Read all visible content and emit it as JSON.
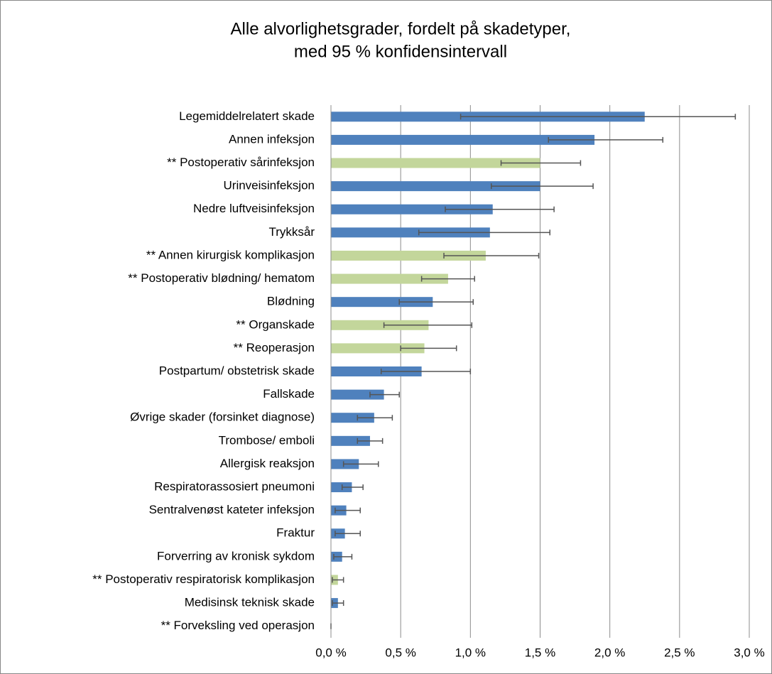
{
  "chart_data": {
    "type": "bar",
    "orientation": "horizontal",
    "title": [
      "Alle alvorlighetsgrader, fordelt på skadetyper,",
      "med 95 % konfidensintervall"
    ],
    "categories": [
      "Legemiddelrelatert skade",
      "Annen infeksjon",
      "** Postoperativ sårinfeksjon",
      "Urinveisinfeksjon",
      "Nedre luftveisinfeksjon",
      "Trykksår",
      "** Annen kirurgisk komplikasjon",
      "** Postoperativ blødning/ hematom",
      "Blødning",
      "** Organskade",
      "** Reoperasjon",
      "Postpartum/ obstetrisk skade",
      "Fallskade",
      "Øvrige skader (forsinket diagnose)",
      "Trombose/ emboli",
      "Allergisk reaksjon",
      "Respiratorassosiert pneumoni",
      "Sentralvenøst kateter infeksjon",
      "Fraktur",
      "Forverring av kronisk sykdom",
      "** Postoperativ respiratorisk komplikasjon",
      "Medisinsk teknisk skade",
      "** Forveksling ved operasjon"
    ],
    "values": [
      2.25,
      1.89,
      1.5,
      1.5,
      1.16,
      1.14,
      1.11,
      0.84,
      0.73,
      0.7,
      0.67,
      0.65,
      0.38,
      0.31,
      0.28,
      0.2,
      0.15,
      0.11,
      0.1,
      0.08,
      0.05,
      0.05,
      0
    ],
    "ci_low": [
      0.93,
      1.56,
      1.22,
      1.15,
      0.82,
      0.63,
      0.81,
      0.65,
      0.49,
      0.38,
      0.5,
      0.36,
      0.28,
      0.19,
      0.19,
      0.09,
      0.08,
      0.03,
      0.03,
      0.02,
      0.01,
      0.01,
      0
    ],
    "ci_high": [
      2.9,
      2.38,
      1.79,
      1.88,
      1.6,
      1.57,
      1.49,
      1.03,
      1.02,
      1.01,
      0.9,
      1.0,
      0.49,
      0.44,
      0.37,
      0.34,
      0.23,
      0.21,
      0.21,
      0.15,
      0.09,
      0.09,
      0
    ],
    "colors": [
      "#4f81bd",
      "#4f81bd",
      "#c3d69b",
      "#4f81bd",
      "#4f81bd",
      "#4f81bd",
      "#c3d69b",
      "#c3d69b",
      "#4f81bd",
      "#c3d69b",
      "#c3d69b",
      "#4f81bd",
      "#4f81bd",
      "#4f81bd",
      "#4f81bd",
      "#4f81bd",
      "#4f81bd",
      "#4f81bd",
      "#4f81bd",
      "#4f81bd",
      "#c3d69b",
      "#4f81bd",
      "#c3d69b"
    ],
    "xlim": [
      0,
      3
    ],
    "xticks": [
      {
        "value": 0,
        "label": "0,0 %"
      },
      {
        "value": 0.5,
        "label": "0,5 %"
      },
      {
        "value": 1,
        "label": "1,0 %"
      },
      {
        "value": 1.5,
        "label": "1,5 %"
      },
      {
        "value": 2,
        "label": "2,0 %"
      },
      {
        "value": 2.5,
        "label": "2,5 %"
      },
      {
        "value": 3,
        "label": "3,0 %"
      }
    ],
    "grid": true
  }
}
